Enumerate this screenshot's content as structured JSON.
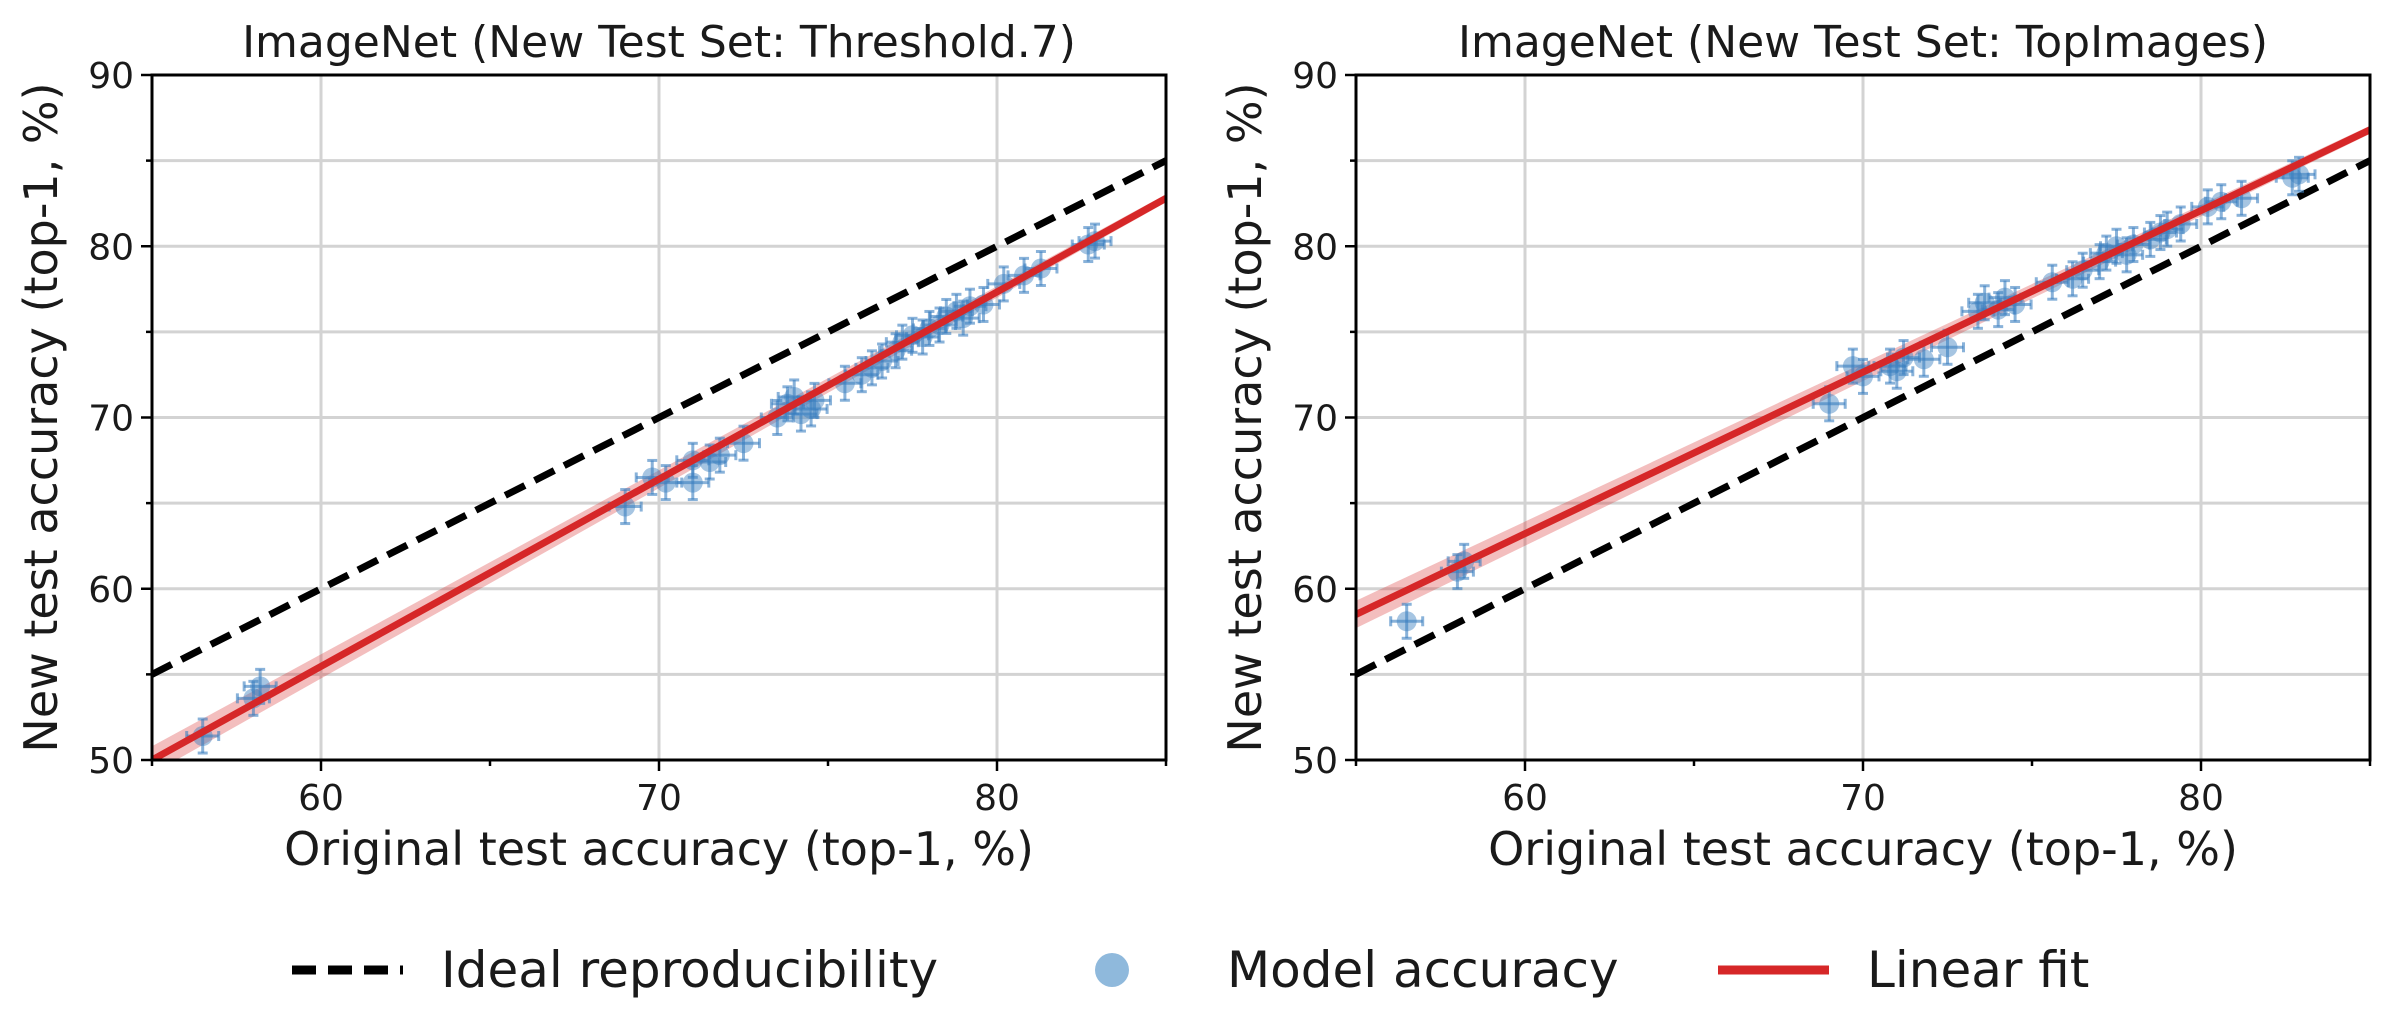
{
  "chart_data": [
    {
      "type": "scatter",
      "title": "ImageNet (New Test Set: Threshold.7)",
      "xlabel": "Original test accuracy (top-1, %)",
      "ylabel": "New test accuracy (top-1, %)",
      "xlim": [
        55,
        85
      ],
      "ylim": [
        50,
        90
      ],
      "xticks": [
        60,
        70,
        80
      ],
      "yticks": [
        50,
        60,
        70,
        80,
        90
      ],
      "grid": true,
      "series": [
        {
          "name": "Ideal reproducibility",
          "kind": "line",
          "style": "dashed",
          "color": "#000000",
          "x": [
            55,
            85
          ],
          "y": [
            55,
            85
          ]
        },
        {
          "name": "Model accuracy",
          "kind": "scatter",
          "color": "#3a7fbf",
          "points": [
            {
              "x": 56.5,
              "y": 51.4
            },
            {
              "x": 58.0,
              "y": 53.6
            },
            {
              "x": 58.2,
              "y": 54.3
            },
            {
              "x": 69.0,
              "y": 64.8
            },
            {
              "x": 69.8,
              "y": 66.5
            },
            {
              "x": 70.2,
              "y": 66.2
            },
            {
              "x": 71.0,
              "y": 67.5
            },
            {
              "x": 71.0,
              "y": 66.2
            },
            {
              "x": 71.5,
              "y": 67.4
            },
            {
              "x": 71.8,
              "y": 67.8
            },
            {
              "x": 72.5,
              "y": 68.5
            },
            {
              "x": 73.5,
              "y": 70.0
            },
            {
              "x": 73.8,
              "y": 70.8
            },
            {
              "x": 74.0,
              "y": 71.2
            },
            {
              "x": 74.2,
              "y": 70.2
            },
            {
              "x": 74.5,
              "y": 70.5
            },
            {
              "x": 74.6,
              "y": 71.0
            },
            {
              "x": 75.5,
              "y": 72.0
            },
            {
              "x": 76.0,
              "y": 72.5
            },
            {
              "x": 76.3,
              "y": 72.9
            },
            {
              "x": 76.6,
              "y": 73.3
            },
            {
              "x": 77.0,
              "y": 73.9
            },
            {
              "x": 77.2,
              "y": 74.4
            },
            {
              "x": 77.5,
              "y": 74.8
            },
            {
              "x": 77.8,
              "y": 74.7
            },
            {
              "x": 78.0,
              "y": 75.2
            },
            {
              "x": 78.3,
              "y": 75.4
            },
            {
              "x": 78.5,
              "y": 75.9
            },
            {
              "x": 78.8,
              "y": 76.2
            },
            {
              "x": 79.0,
              "y": 75.8
            },
            {
              "x": 79.2,
              "y": 76.5
            },
            {
              "x": 79.6,
              "y": 76.6
            },
            {
              "x": 80.2,
              "y": 77.8
            },
            {
              "x": 80.8,
              "y": 78.3
            },
            {
              "x": 81.3,
              "y": 78.7
            },
            {
              "x": 82.7,
              "y": 80.1
            },
            {
              "x": 82.9,
              "y": 80.3
            }
          ]
        },
        {
          "name": "Linear fit",
          "kind": "line",
          "style": "solid",
          "color": "#d62728",
          "x": [
            55,
            85
          ],
          "y": [
            50.0,
            82.8
          ]
        }
      ]
    },
    {
      "type": "scatter",
      "title": "ImageNet (New Test Set: TopImages)",
      "xlabel": "Original test accuracy (top-1, %)",
      "ylabel": "New test accuracy (top-1, %)",
      "xlim": [
        55,
        85
      ],
      "ylim": [
        50,
        90
      ],
      "xticks": [
        60,
        70,
        80
      ],
      "yticks": [
        50,
        60,
        70,
        80,
        90
      ],
      "grid": true,
      "series": [
        {
          "name": "Ideal reproducibility",
          "kind": "line",
          "style": "dashed",
          "color": "#000000",
          "x": [
            55,
            85
          ],
          "y": [
            55,
            85
          ]
        },
        {
          "name": "Model accuracy",
          "kind": "scatter",
          "color": "#3a7fbf",
          "points": [
            {
              "x": 56.5,
              "y": 58.1
            },
            {
              "x": 58.0,
              "y": 61.0
            },
            {
              "x": 58.2,
              "y": 61.6
            },
            {
              "x": 69.0,
              "y": 70.8
            },
            {
              "x": 69.7,
              "y": 73.0
            },
            {
              "x": 70.0,
              "y": 72.4
            },
            {
              "x": 70.8,
              "y": 73.0
            },
            {
              "x": 71.0,
              "y": 72.7
            },
            {
              "x": 71.2,
              "y": 73.5
            },
            {
              "x": 71.8,
              "y": 73.4
            },
            {
              "x": 72.5,
              "y": 74.1
            },
            {
              "x": 73.4,
              "y": 76.2
            },
            {
              "x": 73.6,
              "y": 76.7
            },
            {
              "x": 74.0,
              "y": 76.3
            },
            {
              "x": 74.2,
              "y": 77.0
            },
            {
              "x": 74.5,
              "y": 76.6
            },
            {
              "x": 75.6,
              "y": 77.9
            },
            {
              "x": 76.2,
              "y": 78.1
            },
            {
              "x": 76.5,
              "y": 78.6
            },
            {
              "x": 77.0,
              "y": 79.1
            },
            {
              "x": 77.2,
              "y": 79.6
            },
            {
              "x": 77.5,
              "y": 80.0
            },
            {
              "x": 77.8,
              "y": 79.5
            },
            {
              "x": 78.0,
              "y": 80.1
            },
            {
              "x": 78.5,
              "y": 80.4
            },
            {
              "x": 78.8,
              "y": 80.8
            },
            {
              "x": 79.0,
              "y": 81.0
            },
            {
              "x": 79.4,
              "y": 81.3
            },
            {
              "x": 80.2,
              "y": 82.3
            },
            {
              "x": 80.6,
              "y": 82.6
            },
            {
              "x": 81.2,
              "y": 82.8
            },
            {
              "x": 82.7,
              "y": 84.0
            },
            {
              "x": 82.9,
              "y": 84.2
            }
          ]
        },
        {
          "name": "Linear fit",
          "kind": "line",
          "style": "solid",
          "color": "#d62728",
          "x": [
            55,
            85
          ],
          "y": [
            58.5,
            86.8
          ]
        }
      ]
    }
  ],
  "legend": {
    "placement": "bottom",
    "items": [
      {
        "label": "Ideal reproducibility",
        "icon": "dashed-line",
        "color": "#000000"
      },
      {
        "label": "Model accuracy",
        "icon": "circle-marker",
        "color": "#8fb9dc"
      },
      {
        "label": "Linear fit",
        "icon": "solid-line",
        "color": "#d62728"
      }
    ]
  }
}
